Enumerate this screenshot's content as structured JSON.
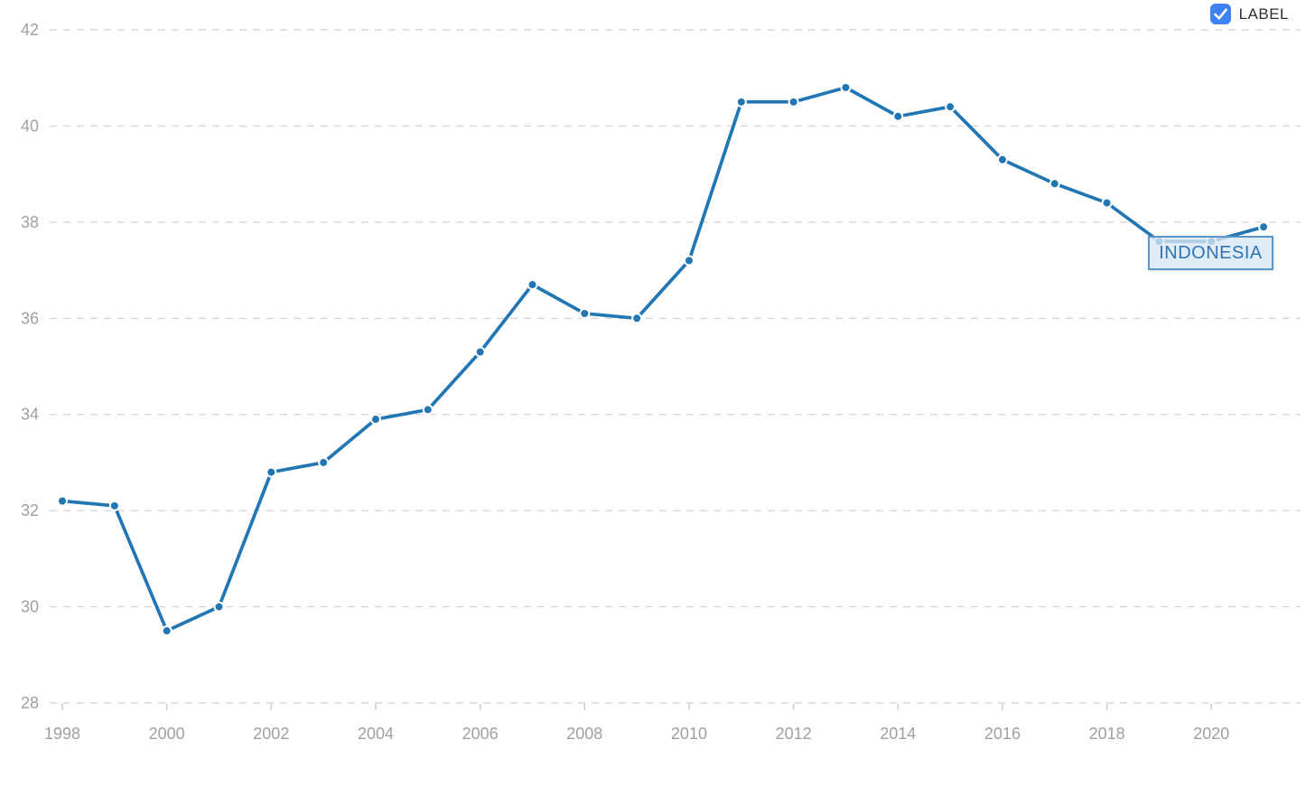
{
  "controls": {
    "label_toggle": {
      "label": "LABEL",
      "checked": true,
      "checkbox_color": "#3e82f5",
      "check_color": "#ffffff"
    }
  },
  "annotations": {
    "series_label": "INDONESIA",
    "series_label_text_color": "#2e75b6",
    "series_label_border_color": "#5a96c8",
    "series_label_bg_color": "#d9e7f4"
  },
  "chart_data": {
    "type": "line",
    "title": "",
    "xlabel": "",
    "ylabel": "",
    "x": [
      1998,
      1999,
      2000,
      2001,
      2002,
      2003,
      2004,
      2005,
      2006,
      2007,
      2008,
      2009,
      2010,
      2011,
      2012,
      2013,
      2014,
      2015,
      2016,
      2017,
      2018,
      2019,
      2020,
      2021
    ],
    "series": [
      {
        "name": "INDONESIA",
        "values": [
          32.2,
          32.1,
          29.5,
          30.0,
          32.8,
          33.0,
          33.9,
          34.1,
          35.3,
          36.7,
          36.1,
          36.0,
          37.2,
          40.5,
          40.5,
          40.8,
          40.2,
          40.4,
          39.3,
          38.8,
          38.4,
          37.6,
          37.6,
          37.9
        ]
      }
    ],
    "x_ticks": [
      1998,
      2000,
      2002,
      2004,
      2006,
      2008,
      2010,
      2012,
      2014,
      2016,
      2018,
      2020
    ],
    "y_ticks": [
      28,
      30,
      32,
      34,
      36,
      38,
      40,
      42
    ],
    "xlim": [
      1998,
      2021
    ],
    "ylim": [
      28,
      42
    ],
    "grid": "horizontal-dashed",
    "legend_position": "none",
    "line_color": "#2276b4",
    "marker_color": "#2276b4",
    "grid_color": "#d7d7d7",
    "tick_mark_color": "#c9c9c9",
    "tick_label_color": "#a0a0a0"
  }
}
